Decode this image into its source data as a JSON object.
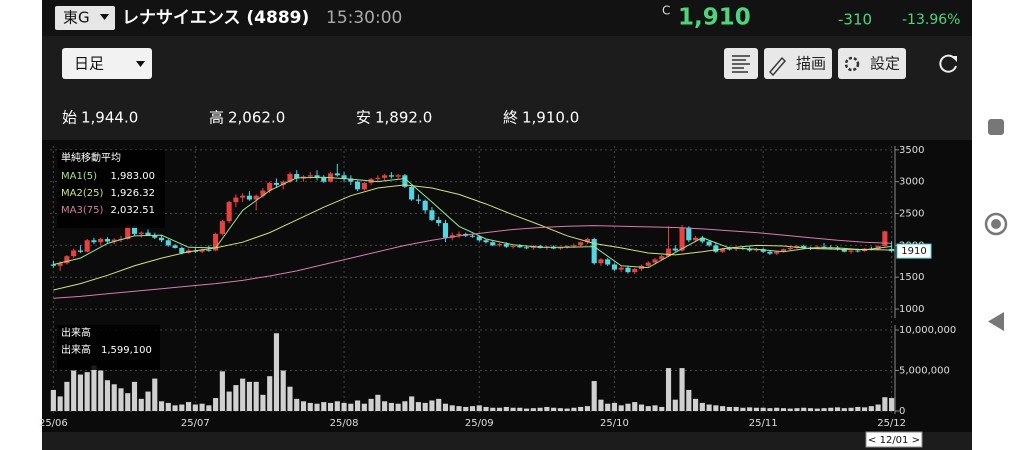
{
  "header": {
    "market": "東G",
    "name": "レナサイエンス (4889)",
    "time": "15:30:00",
    "price_flag": "C",
    "price": "1,910",
    "change": "-310",
    "change_pct": "-13.96%"
  },
  "toolbar": {
    "period": "日足",
    "draw": "描画",
    "settings": "設定"
  },
  "ohlc": [
    {
      "label": "始",
      "value": "1,944.0"
    },
    {
      "label": "高",
      "value": "2,062.0"
    },
    {
      "label": "安",
      "value": "1,892.0"
    },
    {
      "label": "終",
      "value": "1,910.0"
    }
  ],
  "chart_data": [
    {
      "type": "candlestick",
      "up_color": "#e8413f",
      "down_color": "#52d6e4",
      "grid": true,
      "ylim": [
        860,
        3560
      ],
      "yticks": [
        1000,
        1500,
        2000,
        2500,
        3000,
        3500
      ],
      "xticks": [
        {
          "value": 0,
          "label": "25/06"
        },
        {
          "value": 21,
          "label": "25/07"
        },
        {
          "value": 43,
          "label": "25/08"
        },
        {
          "value": 63,
          "label": "25/09"
        },
        {
          "value": 83,
          "label": "25/10"
        },
        {
          "value": 105,
          "label": "25/11"
        },
        {
          "value": 124,
          "label": "25/12"
        }
      ],
      "cursor_label": "< 12/01 >",
      "last_price": 1910,
      "candles": [
        [
          1700,
          1760,
          1650,
          1680
        ],
        [
          1680,
          1750,
          1600,
          1720
        ],
        [
          1720,
          1850,
          1700,
          1830
        ],
        [
          1830,
          1950,
          1800,
          1920
        ],
        [
          1920,
          2000,
          1880,
          1900
        ],
        [
          1900,
          2100,
          1890,
          2080
        ],
        [
          2080,
          2120,
          2020,
          2050
        ],
        [
          2050,
          2120,
          2000,
          2100
        ],
        [
          2100,
          2130,
          2040,
          2060
        ],
        [
          2060,
          2110,
          2020,
          2090
        ],
        [
          2090,
          2150,
          2050,
          2100
        ],
        [
          2100,
          2330,
          2090,
          2300
        ],
        [
          2300,
          2320,
          2150,
          2180
        ],
        [
          2180,
          2220,
          2120,
          2200
        ],
        [
          2200,
          2250,
          2150,
          2160
        ],
        [
          2160,
          2200,
          2100,
          2120
        ],
        [
          2120,
          2160,
          2050,
          2080
        ],
        [
          2080,
          2100,
          1980,
          2000
        ],
        [
          2000,
          2020,
          1950,
          1960
        ],
        [
          1960,
          1980,
          1860,
          1880
        ],
        [
          1880,
          1950,
          1870,
          1920
        ],
        [
          1920,
          1960,
          1880,
          1900
        ],
        [
          1900,
          1950,
          1880,
          1930
        ],
        [
          1930,
          2000,
          1900,
          1920
        ],
        [
          1920,
          2200,
          1910,
          2180
        ],
        [
          2180,
          2400,
          2150,
          2380
        ],
        [
          2380,
          2700,
          2350,
          2680
        ],
        [
          2680,
          2800,
          2600,
          2750
        ],
        [
          2750,
          2820,
          2680,
          2780
        ],
        [
          2780,
          2850,
          2700,
          2720
        ],
        [
          2720,
          2800,
          2550,
          2780
        ],
        [
          2780,
          2900,
          2750,
          2860
        ],
        [
          2860,
          3000,
          2820,
          2980
        ],
        [
          2980,
          3050,
          2900,
          2950
        ],
        [
          2950,
          3020,
          2880,
          3000
        ],
        [
          3000,
          3150,
          2980,
          3120
        ],
        [
          3120,
          3180,
          3000,
          3050
        ],
        [
          3050,
          3100,
          3000,
          3080
        ],
        [
          3080,
          3150,
          3050,
          3100
        ],
        [
          3100,
          3180,
          3020,
          3060
        ],
        [
          3060,
          3100,
          2980,
          3000
        ],
        [
          3000,
          3150,
          2990,
          3130
        ],
        [
          3130,
          3280,
          3080,
          3100
        ],
        [
          3100,
          3150,
          3000,
          3050
        ],
        [
          3050,
          3100,
          2950,
          3000
        ],
        [
          3000,
          3020,
          2850,
          2880
        ],
        [
          2880,
          3000,
          2860,
          2980
        ],
        [
          2980,
          3060,
          2950,
          3040
        ],
        [
          3040,
          3100,
          3000,
          3060
        ],
        [
          3060,
          3120,
          3020,
          3100
        ],
        [
          3100,
          3150,
          3050,
          3080
        ],
        [
          3080,
          3120,
          3040,
          3100
        ],
        [
          3100,
          3120,
          2900,
          2920
        ],
        [
          2920,
          2950,
          2700,
          2720
        ],
        [
          2720,
          2800,
          2650,
          2700
        ],
        [
          2700,
          2720,
          2500,
          2550
        ],
        [
          2550,
          2600,
          2380,
          2400
        ],
        [
          2400,
          2450,
          2300,
          2350
        ],
        [
          2350,
          2400,
          2050,
          2120
        ],
        [
          2120,
          2200,
          2080,
          2160
        ],
        [
          2160,
          2220,
          2120,
          2180
        ],
        [
          2180,
          2200,
          2130,
          2150
        ],
        [
          2150,
          2180,
          2120,
          2140
        ],
        [
          2140,
          2160,
          2060,
          2080
        ],
        [
          2080,
          2100,
          2030,
          2050
        ],
        [
          2050,
          2080,
          1990,
          2000
        ],
        [
          2000,
          2040,
          1980,
          2020
        ],
        [
          2020,
          2050,
          1960,
          1980
        ],
        [
          1980,
          2010,
          1950,
          1990
        ],
        [
          1990,
          2020,
          1960,
          1970
        ],
        [
          1970,
          2000,
          1940,
          1960
        ],
        [
          1960,
          2000,
          1930,
          1990
        ],
        [
          1990,
          2010,
          1950,
          1960
        ],
        [
          1960,
          1990,
          1930,
          1980
        ],
        [
          1980,
          2000,
          1940,
          1950
        ],
        [
          1950,
          1980,
          1930,
          1970
        ],
        [
          1970,
          2000,
          1950,
          1990
        ],
        [
          1990,
          2030,
          1960,
          2000
        ],
        [
          2000,
          2060,
          1980,
          2050
        ],
        [
          2050,
          2120,
          2020,
          2100
        ],
        [
          2100,
          2120,
          1700,
          1720
        ],
        [
          1720,
          1800,
          1680,
          1780
        ],
        [
          1780,
          1800,
          1680,
          1700
        ],
        [
          1700,
          1720,
          1600,
          1620
        ],
        [
          1620,
          1680,
          1580,
          1650
        ],
        [
          1650,
          1680,
          1560,
          1580
        ],
        [
          1580,
          1650,
          1550,
          1630
        ],
        [
          1630,
          1700,
          1600,
          1680
        ],
        [
          1680,
          1750,
          1650,
          1730
        ],
        [
          1730,
          1800,
          1700,
          1780
        ],
        [
          1780,
          1850,
          1760,
          1830
        ],
        [
          1830,
          2300,
          1820,
          1950
        ],
        [
          1950,
          2000,
          1900,
          1920
        ],
        [
          1920,
          2320,
          1900,
          2280
        ],
        [
          2280,
          2300,
          2050,
          2080
        ],
        [
          2080,
          2150,
          2050,
          2120
        ],
        [
          2120,
          2150,
          2030,
          2060
        ],
        [
          2060,
          2080,
          1980,
          2000
        ],
        [
          2000,
          2050,
          1880,
          1900
        ],
        [
          1900,
          1960,
          1880,
          1950
        ],
        [
          1950,
          1980,
          1920,
          1940
        ],
        [
          1940,
          1980,
          1910,
          1960
        ],
        [
          1960,
          1990,
          1930,
          1950
        ],
        [
          1950,
          1980,
          1900,
          1920
        ],
        [
          1920,
          1960,
          1900,
          1940
        ],
        [
          1940,
          1960,
          1880,
          1900
        ],
        [
          1900,
          1920,
          1850,
          1870
        ],
        [
          1870,
          1920,
          1850,
          1900
        ],
        [
          1900,
          1950,
          1890,
          1940
        ],
        [
          1940,
          1980,
          1920,
          1960
        ],
        [
          1960,
          2000,
          1940,
          1990
        ],
        [
          1990,
          2010,
          1950,
          1960
        ],
        [
          1960,
          1980,
          1930,
          1950
        ],
        [
          1950,
          2000,
          1940,
          1980
        ],
        [
          1980,
          2040,
          1960,
          1970
        ],
        [
          1970,
          2000,
          1940,
          1960
        ],
        [
          1960,
          1990,
          1920,
          1940
        ],
        [
          1940,
          1960,
          1890,
          1900
        ],
        [
          1900,
          1930,
          1870,
          1920
        ],
        [
          1920,
          1950,
          1890,
          1910
        ],
        [
          1910,
          1960,
          1900,
          1950
        ],
        [
          1950,
          1980,
          1920,
          1940
        ],
        [
          1940,
          2000,
          1930,
          1990
        ],
        [
          1990,
          2230,
          1980,
          2220
        ],
        [
          1944,
          2062,
          1892,
          1910
        ]
      ],
      "legend_title": "単純移動平均",
      "ma_x": [
        0,
        4,
        8,
        12,
        16,
        20,
        24,
        28,
        32,
        36,
        40,
        44,
        48,
        52,
        56,
        60,
        64,
        68,
        72,
        76,
        80,
        84,
        88,
        92,
        96,
        100,
        104,
        108,
        112,
        116,
        120,
        124
      ],
      "lines": [
        {
          "name": "MA1(5)",
          "color": "#9be68e",
          "value_label": "1,983.00",
          "values": [
            1700,
            1800,
            2030,
            2150,
            2160,
            1970,
            1960,
            2550,
            2860,
            3060,
            3070,
            3040,
            3000,
            3050,
            2680,
            2300,
            2100,
            2010,
            1970,
            1970,
            1980,
            1680,
            1650,
            1890,
            2120,
            1960,
            1940,
            1900,
            1960,
            1960,
            1930,
            1983
          ]
        },
        {
          "name": "MA2(25)",
          "color": "#cfe07a",
          "value_label": "1,926.32",
          "values": [
            1300,
            1400,
            1530,
            1680,
            1800,
            1900,
            1960,
            2050,
            2200,
            2400,
            2600,
            2780,
            2900,
            2950,
            2900,
            2800,
            2650,
            2480,
            2320,
            2150,
            2030,
            1960,
            1880,
            1850,
            1900,
            1960,
            2000,
            1990,
            1950,
            1940,
            1935,
            1926.32
          ]
        },
        {
          "name": "MA3(75)",
          "color": "#d77cab",
          "value_label": "2,032.51",
          "values": [
            1170,
            1200,
            1240,
            1280,
            1320,
            1360,
            1400,
            1450,
            1520,
            1600,
            1700,
            1800,
            1900,
            2000,
            2080,
            2150,
            2200,
            2250,
            2280,
            2300,
            2310,
            2300,
            2290,
            2280,
            2260,
            2230,
            2200,
            2160,
            2120,
            2080,
            2050,
            2032.51
          ]
        }
      ]
    },
    {
      "type": "bar",
      "color": "#d0d0d0",
      "legend_title": "出来高",
      "legend_name": "出来高",
      "legend_value": "1,599,100",
      "ylim": [
        -370000,
        10620000
      ],
      "yticks": [
        0,
        {
          "value": 5000000,
          "label": "5,000,000"
        },
        {
          "value": 10000000,
          "label": "10,000,000"
        }
      ],
      "values": [
        2600000,
        1800000,
        3600000,
        5000000,
        4500000,
        4800000,
        5600000,
        5000000,
        3800000,
        3300000,
        2800000,
        2200000,
        3600000,
        1500000,
        2400000,
        4000000,
        1200000,
        1000000,
        700000,
        800000,
        1100000,
        800000,
        900000,
        700000,
        1600000,
        4900000,
        2400000,
        3200000,
        4000000,
        3600000,
        3600000,
        2000000,
        4300000,
        9600000,
        5000000,
        3000000,
        1500000,
        1200000,
        1000000,
        900000,
        1100000,
        1000000,
        1200000,
        1000000,
        900000,
        1300000,
        900000,
        1500000,
        2000000,
        1200000,
        1000000,
        900000,
        1200000,
        1800000,
        1100000,
        1000000,
        1300000,
        1500000,
        900000,
        700000,
        600000,
        500000,
        600000,
        700000,
        500000,
        400000,
        400000,
        500000,
        400000,
        400000,
        300000,
        350000,
        400000,
        500000,
        400000,
        350000,
        300000,
        400000,
        500000,
        600000,
        3700000,
        1400000,
        900000,
        1000000,
        700000,
        900000,
        1100000,
        800000,
        600000,
        700000,
        500000,
        5300000,
        1400000,
        5300000,
        2600000,
        1500000,
        1000000,
        800000,
        700000,
        600000,
        500000,
        500000,
        400000,
        450000,
        400000,
        400000,
        350000,
        400000,
        350000,
        300000,
        350000,
        400000,
        350000,
        300000,
        350000,
        400000,
        450000,
        350000,
        400000,
        500000,
        450000,
        600000,
        800000,
        1700000,
        1599100
      ]
    }
  ]
}
